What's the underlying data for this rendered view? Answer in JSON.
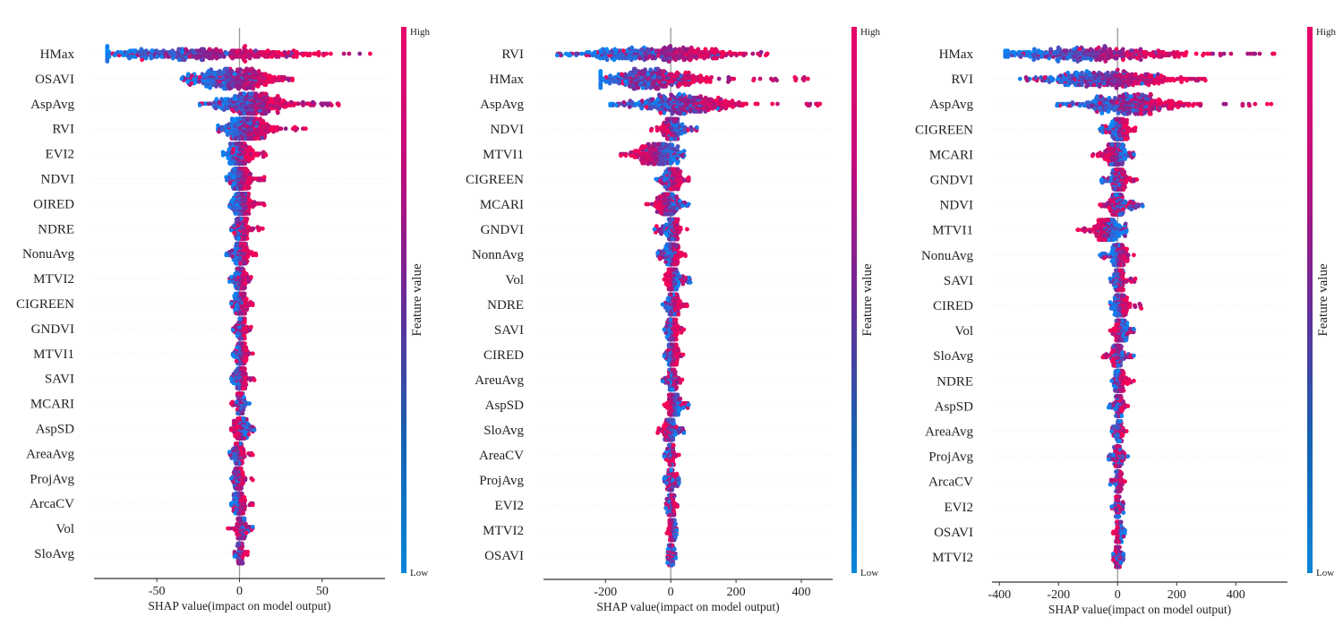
{
  "chart_data": [
    {
      "type": "scatter",
      "subtype": "shap-beeswarm",
      "title": "",
      "xlabel": "SHAP value(impact on model output)",
      "ylabel": "",
      "xticks": [
        -50,
        0,
        50
      ],
      "xlim": [
        -88,
        88
      ],
      "colorbar": {
        "label": "Feature value",
        "high": "High",
        "low": "Low"
      },
      "features": [
        {
          "name": "HMax",
          "min": -80,
          "max": 79,
          "low_center": -70,
          "high_center": 35
        },
        {
          "name": "OSAVI",
          "min": -35,
          "max": 32,
          "low_center": -24,
          "high_center": 20
        },
        {
          "name": "AspAvg",
          "min": -24,
          "max": 60,
          "low_center": -8,
          "high_center": 25
        },
        {
          "name": "RVI",
          "min": -13,
          "max": 40,
          "low_center": -6,
          "high_center": 15
        },
        {
          "name": "EVI2",
          "min": -10,
          "max": 16,
          "low_center": -5,
          "high_center": 6
        },
        {
          "name": "NDVI",
          "min": -8,
          "max": 15,
          "low_center": -4,
          "high_center": 5
        },
        {
          "name": "CIRED",
          "min": -6,
          "max": 15,
          "low_center": -2,
          "high_center": 5
        },
        {
          "name": "NDRE",
          "min": -5,
          "max": 14,
          "low_center": -1,
          "high_center": 4
        },
        {
          "name": "NonuAvg",
          "min": -8,
          "max": 10,
          "low_center": -2,
          "high_center": 4
        },
        {
          "name": "MTVI2",
          "min": -6,
          "max": 7,
          "low_center": -2,
          "high_center": 3
        },
        {
          "name": "CIGREEN",
          "min": -5,
          "max": 8,
          "low_center": -2,
          "high_center": 3
        },
        {
          "name": "GNDVI",
          "min": -4,
          "max": 7,
          "low_center": 0,
          "high_center": 2
        },
        {
          "name": "MTVI1",
          "min": -4,
          "max": 8,
          "low_center": -1,
          "high_center": 3
        },
        {
          "name": "SAVI",
          "min": -5,
          "max": 9,
          "low_center": -1,
          "high_center": 3
        },
        {
          "name": "MCARI",
          "min": -5,
          "max": 6,
          "low_center": 1,
          "high_center": 0
        },
        {
          "name": "AspSD",
          "min": -5,
          "max": 9,
          "low_center": 3,
          "high_center": -1
        },
        {
          "name": "AreaAvg",
          "min": -6,
          "max": 8,
          "low_center": -2,
          "high_center": 1
        },
        {
          "name": "ProjAvg",
          "min": -5,
          "max": 8,
          "low_center": -2,
          "high_center": 1
        },
        {
          "name": "ArcaCV",
          "min": -5,
          "max": 8,
          "low_center": -2,
          "high_center": 2
        },
        {
          "name": "Vol",
          "min": -7,
          "max": 8,
          "low_center": 2,
          "high_center": 0
        },
        {
          "name": "SloAvg",
          "min": -3,
          "max": 5,
          "low_center": 0,
          "high_center": 1
        }
      ],
      "feature_labels_as_printed": [
        "HMax",
        "OSAVI",
        "AspAvg",
        "RVI",
        "EVI2",
        "NDVI",
        "OIRED",
        "NDRE",
        "NonuAvg",
        "MTVI2",
        "CIGREEN",
        "GNDVI",
        "MTVI1",
        "SAVI",
        "MCARI",
        "AspSD",
        "AreaAvg",
        "ProjAvg",
        "ArcaCV",
        "Vol",
        "SloAvg"
      ]
    },
    {
      "type": "scatter",
      "subtype": "shap-beeswarm",
      "title": "",
      "xlabel": "SHAP value(impact on model output)",
      "ylabel": "",
      "xticks": [
        -200,
        0,
        200,
        400
      ],
      "xlim": [
        -390,
        496
      ],
      "colorbar": {
        "label": "Feature value",
        "high": "High",
        "low": "Low"
      },
      "features": [
        {
          "name": "RVI",
          "min": -348,
          "max": 296,
          "low_center": -195,
          "high_center": 150
        },
        {
          "name": "HMax",
          "min": -215,
          "max": 420,
          "low_center": -190,
          "high_center": 80
        },
        {
          "name": "AspAvg",
          "min": -185,
          "max": 457,
          "low_center": -60,
          "high_center": 150
        },
        {
          "name": "NDVI",
          "min": -60,
          "max": 80,
          "low_center": 15,
          "high_center": -10
        },
        {
          "name": "MTVI1",
          "min": -153,
          "max": 41,
          "low_center": 10,
          "high_center": -90
        },
        {
          "name": "CIGREEN",
          "min": -45,
          "max": 55,
          "low_center": -15,
          "high_center": 25
        },
        {
          "name": "MCARI",
          "min": -75,
          "max": 55,
          "low_center": 10,
          "high_center": -30
        },
        {
          "name": "GNDVI",
          "min": -50,
          "max": 50,
          "low_center": -5,
          "high_center": 20
        },
        {
          "name": "NonnAvg",
          "min": -40,
          "max": 45,
          "low_center": -10,
          "high_center": 20
        },
        {
          "name": "Vol",
          "min": -20,
          "max": 60,
          "low_center": 20,
          "high_center": -5
        },
        {
          "name": "NDRE",
          "min": -25,
          "max": 50,
          "low_center": -5,
          "high_center": 20
        },
        {
          "name": "SAVI",
          "min": -20,
          "max": 40,
          "low_center": -5,
          "high_center": 15
        },
        {
          "name": "CIRED",
          "min": -20,
          "max": 38,
          "low_center": -5,
          "high_center": 15
        },
        {
          "name": "AreaAvg",
          "min": -25,
          "max": 35,
          "low_center": 0,
          "high_center": 10
        },
        {
          "name": "AspSD",
          "min": -20,
          "max": 55,
          "low_center": 20,
          "high_center": -5
        },
        {
          "name": "SloAvg",
          "min": -40,
          "max": 40,
          "low_center": 5,
          "high_center": -15
        },
        {
          "name": "AreaCV",
          "min": -20,
          "max": 25,
          "low_center": 0,
          "high_center": 5
        },
        {
          "name": "ProjAvg",
          "min": -20,
          "max": 25,
          "low_center": 0,
          "high_center": 0
        },
        {
          "name": "EVI2",
          "min": -15,
          "max": 20,
          "low_center": 0,
          "high_center": 5
        },
        {
          "name": "MTVI2",
          "min": -12,
          "max": 18,
          "low_center": 10,
          "high_center": 0
        },
        {
          "name": "OSAVI",
          "min": -10,
          "max": 15,
          "low_center": 0,
          "high_center": 0
        }
      ],
      "feature_labels_as_printed": [
        "RVI",
        "HMax",
        "AspAvg",
        "NDVI",
        "MTVI1",
        "CIGREEN",
        "MCARI",
        "GNDVI",
        "NonnAvg",
        "Vol",
        "NDRE",
        "SAVI",
        "CIRED",
        "AreuAvg",
        "AspSD",
        "SloAvg",
        "AreaCV",
        "ProjAvg",
        "EVI2",
        "MTVI2",
        "OSAVI"
      ]
    },
    {
      "type": "scatter",
      "subtype": "shap-beeswarm",
      "title": "",
      "xlabel": "SHAP value(impact on model output)",
      "ylabel": "",
      "xticks": [
        -400,
        -200,
        0,
        200,
        400
      ],
      "xlim": [
        -425,
        575
      ],
      "colorbar": {
        "label": "Feature value",
        "high": "High",
        "low": "Low"
      },
      "features": [
        {
          "name": "HMax",
          "min": -380,
          "max": 530,
          "low_center": -320,
          "high_center": 180
        },
        {
          "name": "RVI",
          "min": -330,
          "max": 297,
          "low_center": -200,
          "high_center": 150
        },
        {
          "name": "AspAvg",
          "min": -205,
          "max": 520,
          "low_center": -75,
          "high_center": 150
        },
        {
          "name": "CIGREEN",
          "min": -60,
          "max": 60,
          "low_center": -10,
          "high_center": 25
        },
        {
          "name": "MCARI",
          "min": -85,
          "max": 55,
          "low_center": 10,
          "high_center": -30
        },
        {
          "name": "GNDVI",
          "min": -55,
          "max": 65,
          "low_center": -5,
          "high_center": 15
        },
        {
          "name": "NDVI",
          "min": -60,
          "max": 85,
          "low_center": 5,
          "high_center": -5
        },
        {
          "name": "MTVI1",
          "min": -135,
          "max": 30,
          "low_center": 0,
          "high_center": -70
        },
        {
          "name": "NonuAvg",
          "min": -60,
          "max": 55,
          "low_center": -15,
          "high_center": 20
        },
        {
          "name": "SAVI",
          "min": -25,
          "max": 60,
          "low_center": -5,
          "high_center": 15
        },
        {
          "name": "CIRED",
          "min": -25,
          "max": 80,
          "low_center": -5,
          "high_center": 20
        },
        {
          "name": "Vol",
          "min": -25,
          "max": 55,
          "low_center": 25,
          "high_center": -5
        },
        {
          "name": "SloAvg",
          "min": -50,
          "max": 55,
          "low_center": 5,
          "high_center": -10
        },
        {
          "name": "NDRE",
          "min": -20,
          "max": 55,
          "low_center": -5,
          "high_center": 15
        },
        {
          "name": "AspSD",
          "min": -30,
          "max": 35,
          "low_center": 0,
          "high_center": 10
        },
        {
          "name": "AreaAvg",
          "min": -20,
          "max": 30,
          "low_center": 0,
          "high_center": 10
        },
        {
          "name": "ProjAvg",
          "min": -30,
          "max": 35,
          "low_center": 0,
          "high_center": 0
        },
        {
          "name": "ArcaCV",
          "min": -25,
          "max": 25,
          "low_center": 0,
          "high_center": 5
        },
        {
          "name": "EVI2",
          "min": -20,
          "max": 20,
          "low_center": 0,
          "high_center": 0
        },
        {
          "name": "OSAVI",
          "min": -15,
          "max": 25,
          "low_center": 10,
          "high_center": 0
        },
        {
          "name": "MTVI2",
          "min": -15,
          "max": 20,
          "low_center": 0,
          "high_center": 0
        }
      ],
      "feature_labels_as_printed": [
        "HMax",
        "RVI",
        "AspAvg",
        "CIGREEN",
        "MCARI",
        "GNDVI",
        "NDVI",
        "MTVI1",
        "NonuAvg",
        "SAVI",
        "CIRED",
        "Vol",
        "SloAvg",
        "NDRE",
        "AspSD",
        "AreaAvg",
        "ProjAvg",
        "ArcaCV",
        "EVI2",
        "OSAVI",
        "MTVI2"
      ]
    }
  ],
  "colors": {
    "high": "#ff0052",
    "mid": "#8a1e8e",
    "low": "#008bfb",
    "axis": "#333333",
    "zero_line": "#999999",
    "grid": "#f0f0f0"
  }
}
